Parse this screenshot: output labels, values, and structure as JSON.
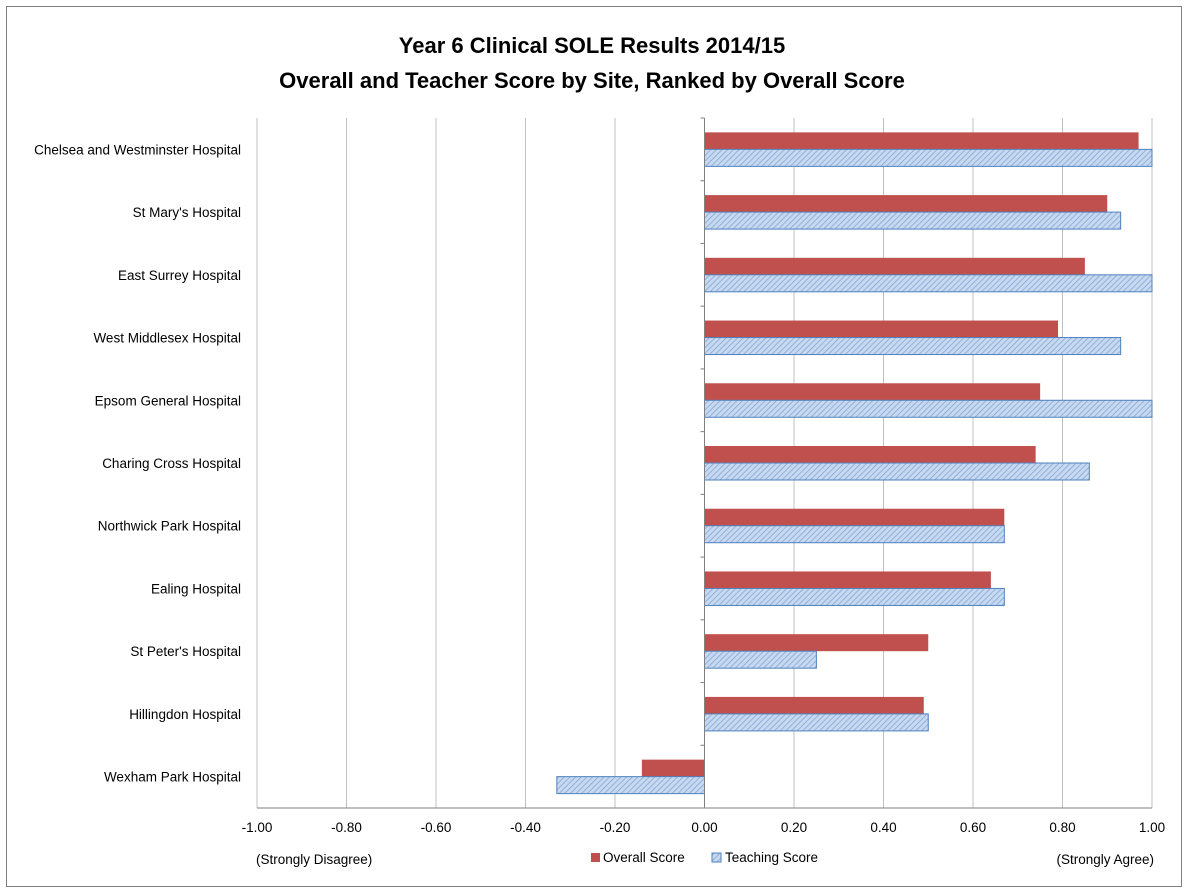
{
  "chart_data": {
    "type": "bar",
    "orientation": "horizontal",
    "title": [
      "Year 6 Clinical SOLE Results  2014/15",
      "Overall and Teacher Score by Site, Ranked by Overall Score"
    ],
    "categories": [
      "Chelsea and Westminster Hospital",
      "St Mary's Hospital",
      "East Surrey Hospital",
      "West Middlesex Hospital",
      "Epsom General Hospital",
      "Charing Cross Hospital",
      "Northwick Park Hospital",
      "Ealing Hospital",
      "St Peter's Hospital",
      "Hillingdon Hospital",
      "Wexham Park Hospital"
    ],
    "series": [
      {
        "name": "Overall Score",
        "color": "#c0504d",
        "values": [
          0.97,
          0.9,
          0.85,
          0.79,
          0.75,
          0.74,
          0.67,
          0.64,
          0.5,
          0.49,
          -0.14
        ]
      },
      {
        "name": "Teaching Score",
        "color": "#b9cde5",
        "edge_color": "#4f81bd",
        "pattern": "hatched",
        "values": [
          1.0,
          0.93,
          1.0,
          0.93,
          1.0,
          0.86,
          0.67,
          0.67,
          0.25,
          0.5,
          -0.33
        ]
      }
    ],
    "xlim": [
      -1.0,
      1.0
    ],
    "xticks": [
      "-1.00",
      "-0.80",
      "-0.60",
      "-0.40",
      "-0.20",
      "0.00",
      "0.20",
      "0.40",
      "0.60",
      "0.80",
      "1.00"
    ],
    "xtick_values": [
      -1.0,
      -0.8,
      -0.6,
      -0.4,
      -0.2,
      0.0,
      0.2,
      0.4,
      0.6,
      0.8,
      1.0
    ],
    "grid": "vertical",
    "legend_position": "bottom",
    "annotations": {
      "left": "(Strongly Disagree)",
      "right": "(Strongly Agree)"
    }
  }
}
